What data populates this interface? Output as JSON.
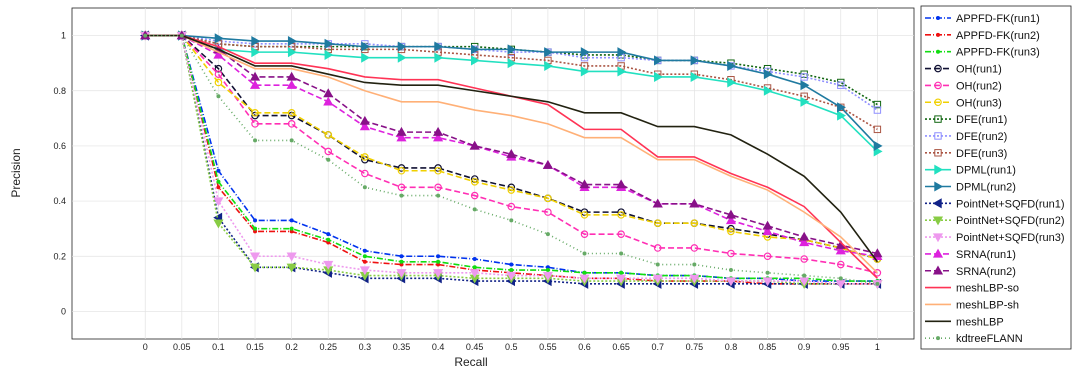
{
  "chart_data": {
    "type": "line",
    "title": "",
    "xlabel": "Recall",
    "ylabel": "Precision",
    "xlim": [
      -0.1,
      1.05
    ],
    "ylim": [
      -0.1,
      1.1
    ],
    "grid": true,
    "legend_position": "right",
    "x": [
      0,
      0.05,
      0.1,
      0.15,
      0.2,
      0.25,
      0.3,
      0.35,
      0.4,
      0.45,
      0.5,
      0.55,
      0.6,
      0.65,
      0.7,
      0.75,
      0.8,
      0.85,
      0.9,
      0.95,
      1
    ],
    "x_ticks": [
      "0",
      "0.05",
      "0.1",
      "0.15",
      "0.2",
      "0.25",
      "0.3",
      "0.35",
      "0.4",
      "0.45",
      "0.5",
      "0.55",
      "0.6",
      "0.65",
      "0.7",
      "0.75",
      "0.8",
      "0.85",
      "0.9",
      "0.95",
      "1"
    ],
    "y_ticks": [
      "0",
      "0.2",
      "0.4",
      "0.6",
      "0.8",
      "1"
    ],
    "series": [
      {
        "name": "APPFD-FK(run1)",
        "color": "#0033ee",
        "dash": "6,2,1,2",
        "marker": "dot",
        "values": [
          1,
          1,
          0.51,
          0.33,
          0.33,
          0.28,
          0.22,
          0.2,
          0.2,
          0.19,
          0.17,
          0.16,
          0.14,
          0.14,
          0.13,
          0.13,
          0.12,
          0.12,
          0.11,
          0.11,
          0.11
        ]
      },
      {
        "name": "APPFD-FK(run2)",
        "color": "#ee1111",
        "dash": "6,2,1,2",
        "marker": "dot",
        "values": [
          1,
          1,
          0.45,
          0.29,
          0.29,
          0.25,
          0.18,
          0.17,
          0.17,
          0.15,
          0.14,
          0.13,
          0.12,
          0.12,
          0.11,
          0.11,
          0.11,
          0.1,
          0.1,
          0.1,
          0.1
        ]
      },
      {
        "name": "APPFD-FK(run3)",
        "color": "#11dd11",
        "dash": "6,2,1,2",
        "marker": "dot",
        "values": [
          1,
          1,
          0.47,
          0.3,
          0.3,
          0.26,
          0.2,
          0.18,
          0.18,
          0.16,
          0.15,
          0.15,
          0.14,
          0.14,
          0.13,
          0.13,
          0.12,
          0.12,
          0.12,
          0.11,
          0.11
        ]
      },
      {
        "name": "OH(run1)",
        "color": "#111133",
        "dash": "6,3",
        "marker": "circle",
        "values": [
          1,
          1,
          0.88,
          0.71,
          0.71,
          0.64,
          0.55,
          0.52,
          0.52,
          0.48,
          0.45,
          0.41,
          0.36,
          0.36,
          0.32,
          0.32,
          0.3,
          0.28,
          0.26,
          0.23,
          0.19
        ]
      },
      {
        "name": "OH(run2)",
        "color": "#ff2fb4",
        "dash": "6,3",
        "marker": "circle",
        "values": [
          1,
          1,
          0.86,
          0.68,
          0.68,
          0.58,
          0.5,
          0.45,
          0.45,
          0.42,
          0.38,
          0.36,
          0.28,
          0.28,
          0.23,
          0.23,
          0.21,
          0.2,
          0.19,
          0.17,
          0.14
        ]
      },
      {
        "name": "OH(run3)",
        "color": "#f0d000",
        "dash": "6,3",
        "marker": "circle",
        "values": [
          1,
          1,
          0.83,
          0.72,
          0.72,
          0.64,
          0.56,
          0.51,
          0.51,
          0.47,
          0.44,
          0.41,
          0.35,
          0.35,
          0.32,
          0.32,
          0.29,
          0.27,
          0.26,
          0.23,
          0.19
        ]
      },
      {
        "name": "DFE(run1)",
        "color": "#116611",
        "dash": "2,2",
        "marker": "square",
        "values": [
          1,
          1,
          0.97,
          0.96,
          0.96,
          0.96,
          0.96,
          0.96,
          0.96,
          0.96,
          0.95,
          0.94,
          0.93,
          0.93,
          0.91,
          0.91,
          0.9,
          0.88,
          0.86,
          0.83,
          0.75
        ]
      },
      {
        "name": "DFE(run2)",
        "color": "#8f8fff",
        "dash": "2,2",
        "marker": "square",
        "values": [
          1,
          1,
          0.98,
          0.97,
          0.97,
          0.97,
          0.97,
          0.96,
          0.96,
          0.95,
          0.94,
          0.94,
          0.92,
          0.92,
          0.91,
          0.91,
          0.89,
          0.87,
          0.85,
          0.82,
          0.73
        ]
      },
      {
        "name": "DFE(run3)",
        "color": "#aa5544",
        "dash": "2,2",
        "marker": "square",
        "values": [
          1,
          1,
          0.97,
          0.96,
          0.96,
          0.95,
          0.95,
          0.95,
          0.94,
          0.93,
          0.92,
          0.91,
          0.89,
          0.89,
          0.86,
          0.86,
          0.84,
          0.81,
          0.78,
          0.74,
          0.66
        ]
      },
      {
        "name": "DPML(run1)",
        "color": "#22e0c0",
        "dash": "",
        "marker": "triangle-right",
        "values": [
          1,
          1,
          0.95,
          0.94,
          0.94,
          0.93,
          0.92,
          0.92,
          0.92,
          0.91,
          0.9,
          0.89,
          0.87,
          0.87,
          0.85,
          0.85,
          0.83,
          0.8,
          0.76,
          0.71,
          0.58
        ]
      },
      {
        "name": "DPML(run2)",
        "color": "#1f7aa0",
        "dash": "",
        "marker": "triangle-right",
        "values": [
          1,
          1,
          0.99,
          0.98,
          0.98,
          0.97,
          0.96,
          0.96,
          0.96,
          0.95,
          0.95,
          0.94,
          0.94,
          0.94,
          0.91,
          0.91,
          0.89,
          0.86,
          0.82,
          0.74,
          0.6
        ]
      },
      {
        "name": "PointNet+SQFD(run1)",
        "color": "#112288",
        "dash": "2,2",
        "marker": "triangle-left",
        "values": [
          1,
          1,
          0.34,
          0.16,
          0.16,
          0.14,
          0.12,
          0.12,
          0.12,
          0.11,
          0.11,
          0.11,
          0.1,
          0.1,
          0.1,
          0.1,
          0.1,
          0.1,
          0.1,
          0.1,
          0.1
        ]
      },
      {
        "name": "PointNet+SQFD(run2)",
        "color": "#88cc44",
        "dash": "2,2",
        "marker": "triangle-down",
        "values": [
          1,
          1,
          0.32,
          0.16,
          0.16,
          0.15,
          0.13,
          0.13,
          0.13,
          0.12,
          0.12,
          0.12,
          0.11,
          0.11,
          0.11,
          0.11,
          0.11,
          0.11,
          0.1,
          0.1,
          0.1
        ]
      },
      {
        "name": "PointNet+SQFD(run3)",
        "color": "#ee99ee",
        "dash": "2,2",
        "marker": "triangle-down",
        "values": [
          1,
          1,
          0.4,
          0.2,
          0.2,
          0.17,
          0.15,
          0.14,
          0.14,
          0.14,
          0.13,
          0.13,
          0.12,
          0.12,
          0.12,
          0.12,
          0.11,
          0.11,
          0.11,
          0.1,
          0.1
        ]
      },
      {
        "name": "SRNA(run1)",
        "color": "#dd22dd",
        "dash": "6,3",
        "marker": "triangle-up",
        "values": [
          1,
          1,
          0.93,
          0.82,
          0.82,
          0.76,
          0.67,
          0.63,
          0.63,
          0.6,
          0.56,
          0.53,
          0.45,
          0.45,
          0.39,
          0.39,
          0.33,
          0.29,
          0.25,
          0.22,
          0.2
        ]
      },
      {
        "name": "SRNA(run2)",
        "color": "#881188",
        "dash": "6,3",
        "marker": "triangle-up",
        "values": [
          1,
          1,
          0.95,
          0.85,
          0.85,
          0.79,
          0.69,
          0.65,
          0.65,
          0.6,
          0.57,
          0.53,
          0.46,
          0.46,
          0.39,
          0.39,
          0.35,
          0.31,
          0.27,
          0.24,
          0.21
        ]
      },
      {
        "name": "meshLBP-so",
        "color": "#ff3355",
        "dash": "",
        "marker": "none",
        "values": [
          1,
          1,
          0.96,
          0.9,
          0.9,
          0.88,
          0.85,
          0.84,
          0.84,
          0.81,
          0.78,
          0.75,
          0.66,
          0.66,
          0.56,
          0.56,
          0.5,
          0.45,
          0.38,
          0.25,
          0.12
        ]
      },
      {
        "name": "meshLBP-sh",
        "color": "#ffb077",
        "dash": "",
        "marker": "none",
        "values": [
          1,
          1,
          0.94,
          0.88,
          0.88,
          0.85,
          0.8,
          0.76,
          0.76,
          0.73,
          0.71,
          0.68,
          0.63,
          0.63,
          0.55,
          0.55,
          0.49,
          0.44,
          0.36,
          0.27,
          0.14
        ]
      },
      {
        "name": "meshLBP",
        "color": "#222211",
        "dash": "",
        "marker": "none",
        "values": [
          1,
          1,
          0.95,
          0.89,
          0.89,
          0.86,
          0.83,
          0.82,
          0.82,
          0.8,
          0.78,
          0.76,
          0.72,
          0.72,
          0.67,
          0.67,
          0.64,
          0.57,
          0.49,
          0.36,
          0.18
        ]
      },
      {
        "name": "kdtreeFLANN",
        "color": "#66aa66",
        "dash": "1,3",
        "marker": "dot",
        "values": [
          1,
          1,
          0.78,
          0.62,
          0.62,
          0.55,
          0.45,
          0.42,
          0.42,
          0.37,
          0.33,
          0.28,
          0.21,
          0.21,
          0.17,
          0.17,
          0.15,
          0.14,
          0.13,
          0.12,
          0.1
        ]
      }
    ]
  }
}
